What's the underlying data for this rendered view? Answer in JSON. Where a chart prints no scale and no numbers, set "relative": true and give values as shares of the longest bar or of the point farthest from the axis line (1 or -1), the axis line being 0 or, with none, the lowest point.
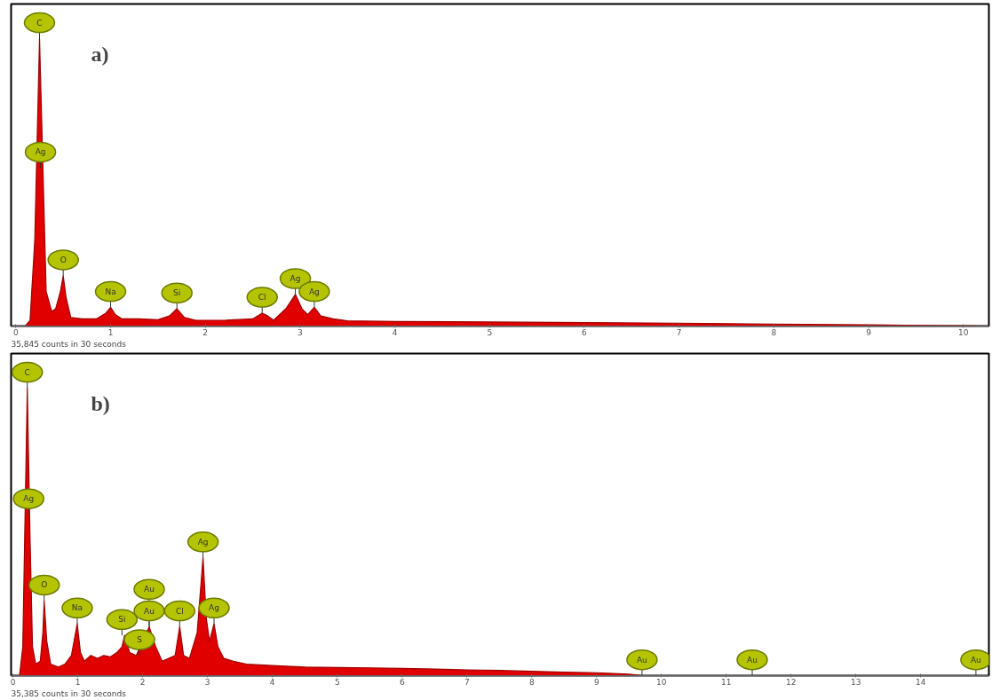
{
  "chart_data": [
    {
      "type": "area",
      "title": "a)",
      "relative": true,
      "xlim": [
        -0.05,
        10.27
      ],
      "xticks": [
        0,
        1,
        2,
        3,
        4,
        5,
        6,
        7,
        8,
        9,
        10
      ],
      "series": [
        {
          "color": "#e00000",
          "x": [
            -0.05,
            0.1,
            0.15,
            0.2,
            0.25,
            0.32,
            0.38,
            0.42,
            0.47,
            0.5,
            0.53,
            0.58,
            0.7,
            0.85,
            0.95,
            1.0,
            1.05,
            1.12,
            1.3,
            1.5,
            1.62,
            1.7,
            1.78,
            1.9,
            2.2,
            2.5,
            2.6,
            2.66,
            2.72,
            2.85,
            2.95,
            3.02,
            3.08,
            3.15,
            3.22,
            3.35,
            3.5,
            4,
            5,
            6,
            7,
            8,
            9,
            9.5,
            10,
            10.27
          ],
          "values": [
            0,
            0,
            0.02,
            0.3,
            1.0,
            0.12,
            0.05,
            0.06,
            0.12,
            0.175,
            0.1,
            0.03,
            0.025,
            0.025,
            0.045,
            0.065,
            0.04,
            0.025,
            0.025,
            0.022,
            0.035,
            0.06,
            0.03,
            0.02,
            0.02,
            0.025,
            0.045,
            0.035,
            0.02,
            0.06,
            0.11,
            0.06,
            0.04,
            0.065,
            0.035,
            0.025,
            0.018,
            0.016,
            0.014,
            0.012,
            0.01,
            0.007,
            0.004,
            0.002,
            0.001,
            0
          ]
        }
      ],
      "annotations": [
        {
          "text": "C",
          "x": 0.25,
          "y": 1.0
        },
        {
          "text": "Ag",
          "x": 0.26,
          "y": 0.55
        },
        {
          "text": "O",
          "x": 0.5,
          "y": 0.175
        },
        {
          "text": "Na",
          "x": 1.0,
          "y": 0.065
        },
        {
          "text": "Si",
          "x": 1.7,
          "y": 0.06
        },
        {
          "text": "Cl",
          "x": 2.6,
          "y": 0.045
        },
        {
          "text": "Ag",
          "x": 2.95,
          "y": 0.11
        },
        {
          "text": "Ag",
          "x": 3.15,
          "y": 0.065
        },
        "35,845 counts in 30 seconds"
      ]
    },
    {
      "type": "area",
      "title": "b)",
      "relative": true,
      "xlim": [
        -0.03,
        15.05
      ],
      "xticks": [
        0,
        1,
        2,
        3,
        4,
        5,
        6,
        7,
        8,
        9,
        10,
        11,
        12,
        13,
        14
      ],
      "series": [
        {
          "color": "#e00000",
          "x": [
            -0.03,
            0.1,
            0.15,
            0.22,
            0.26,
            0.3,
            0.35,
            0.42,
            0.46,
            0.48,
            0.52,
            0.58,
            0.7,
            0.8,
            0.9,
            0.99,
            1.04,
            1.1,
            1.2,
            1.3,
            1.4,
            1.5,
            1.6,
            1.68,
            1.72,
            1.8,
            1.9,
            2.1,
            2.2,
            2.3,
            2.4,
            2.5,
            2.57,
            2.63,
            2.72,
            2.84,
            2.93,
            2.98,
            3.03,
            3.1,
            3.16,
            3.25,
            3.4,
            3.6,
            4,
            4.5,
            5,
            5.5,
            6,
            6.5,
            7,
            7.5,
            8,
            8.5,
            9,
            9.5,
            9.7,
            15.05
          ],
          "values": [
            0,
            0,
            0.1,
            1.0,
            0.5,
            0.1,
            0.04,
            0.05,
            0.15,
            0.26,
            0.12,
            0.04,
            0.03,
            0.04,
            0.07,
            0.18,
            0.08,
            0.05,
            0.07,
            0.06,
            0.07,
            0.065,
            0.08,
            0.1,
            0.14,
            0.08,
            0.07,
            0.17,
            0.1,
            0.05,
            0.06,
            0.07,
            0.17,
            0.07,
            0.06,
            0.15,
            0.41,
            0.2,
            0.12,
            0.18,
            0.1,
            0.06,
            0.05,
            0.04,
            0.035,
            0.03,
            0.028,
            0.027,
            0.025,
            0.023,
            0.02,
            0.018,
            0.015,
            0.012,
            0.01,
            0.005,
            0,
            0
          ]
        }
      ],
      "annotations": [
        {
          "text": "C",
          "x": 0.22,
          "y": 1.0
        },
        {
          "text": "Ag",
          "x": 0.24,
          "y": 0.56
        },
        {
          "text": "O",
          "x": 0.48,
          "y": 0.26
        },
        {
          "text": "Na",
          "x": 0.99,
          "y": 0.18
        },
        {
          "text": "Si",
          "x": 1.68,
          "y": 0.14
        },
        {
          "text": "S",
          "x": 1.95,
          "y": 0.07
        },
        {
          "text": "Au",
          "x": 2.1,
          "y": 0.17
        },
        {
          "text": "Au",
          "x": 2.1,
          "y": 0.17
        },
        {
          "text": "Cl",
          "x": 2.57,
          "y": 0.17
        },
        {
          "text": "Ag",
          "x": 2.93,
          "y": 0.41
        },
        {
          "text": "Ag",
          "x": 3.1,
          "y": 0.18
        },
        {
          "text": "Au",
          "x": 9.7,
          "y": 0
        },
        {
          "text": "Au",
          "x": 11.4,
          "y": 0
        },
        {
          "text": "Au",
          "x": 14.85,
          "y": 0
        },
        "35,385 counts in 30 seconds"
      ]
    }
  ]
}
